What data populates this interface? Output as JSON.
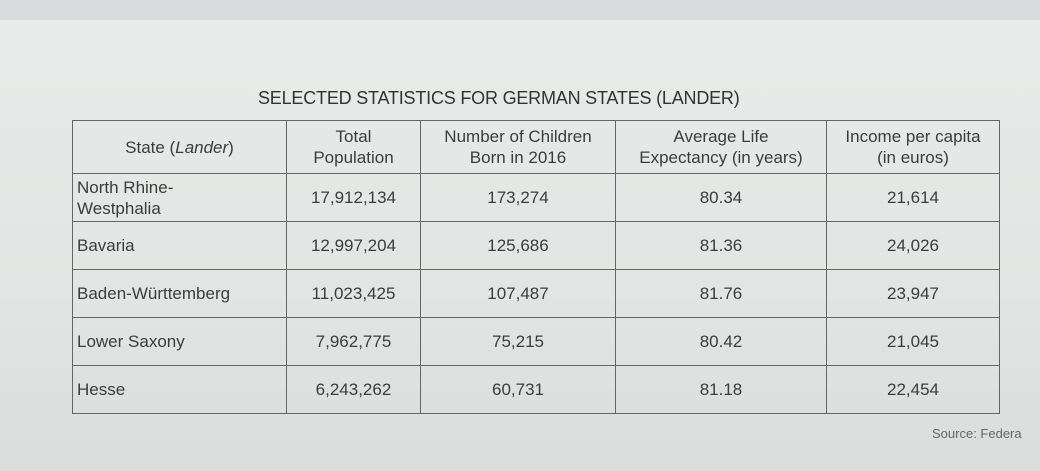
{
  "title": "SELECTED STATISTICS FOR GERMAN STATES (LANDER)",
  "headers": {
    "state_prefix": "State (",
    "state_italic": "Lander",
    "state_suffix": ")",
    "population_line1": "Total",
    "population_line2": "Population",
    "children_line1": "Number of Children",
    "children_line2": "Born in 2016",
    "life_line1": "Average Life",
    "life_line2": "Expectancy (in years)",
    "income_line1": "Income per capita",
    "income_line2": "(in euros)"
  },
  "rows": [
    {
      "state_line1": "North Rhine-",
      "state_line2": "Westphalia",
      "population": "17,912,134",
      "children": "173,274",
      "life": "80.34",
      "income": "21,614"
    },
    {
      "state_line1": "Bavaria",
      "state_line2": "",
      "population": "12,997,204",
      "children": "125,686",
      "life": "81.36",
      "income": "24,026"
    },
    {
      "state_line1": "Baden-Württemberg",
      "state_line2": "",
      "population": "11,023,425",
      "children": "107,487",
      "life": "81.76",
      "income": "23,947"
    },
    {
      "state_line1": "Lower Saxony",
      "state_line2": "",
      "population": "7,962,775",
      "children": "75,215",
      "life": "80.42",
      "income": "21,045"
    },
    {
      "state_line1": "Hesse",
      "state_line2": "",
      "population": "6,243,262",
      "children": "60,731",
      "life": "81.18",
      "income": "22,454"
    }
  ],
  "source": "Source: Federa"
}
